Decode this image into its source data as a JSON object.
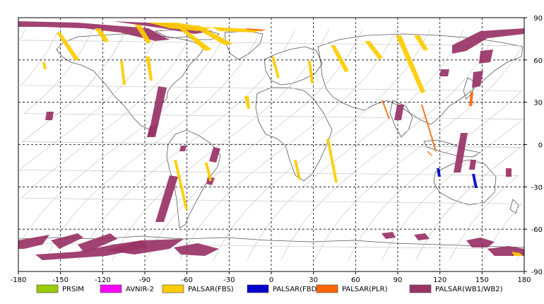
{
  "map": {
    "x_axis": {
      "range": [
        -180,
        180
      ],
      "ticks": [
        -180,
        -150,
        -120,
        -90,
        -60,
        -30,
        0,
        30,
        60,
        90,
        120,
        150,
        180
      ],
      "tick_labels": [
        "-180",
        "-150",
        "-120",
        "-90",
        "-60",
        "-30",
        "0",
        "30",
        "60",
        "90",
        "120",
        "150",
        "180"
      ]
    },
    "y_axis": {
      "range": [
        -90,
        90
      ],
      "ticks": [
        90,
        60,
        30,
        0,
        -30,
        -60,
        -90
      ],
      "tick_labels": [
        "90",
        "60",
        "30",
        "0",
        "-30",
        "-60",
        "-90"
      ]
    },
    "grid": "dashed",
    "legend": {
      "placement": "bottom",
      "items": [
        {
          "label": "PRSIM",
          "color": "#99cc00"
        },
        {
          "label": "AVNIR-2",
          "color": "#ff00ff"
        },
        {
          "label": "PALSAR(FBS)",
          "color": "#ffcc00"
        },
        {
          "label": "PALSAR(FBD)",
          "color": "#0000cc"
        },
        {
          "label": "PALSAR(PLR)",
          "color": "#ff6600"
        },
        {
          "label": "PALSAR(WB1/WB2)",
          "color": "#993366"
        }
      ]
    },
    "colors": {
      "coast": "#555555",
      "orbit": "#c8c8c8",
      "wb": "#993366",
      "fbs": "#ffcc00",
      "fbd": "#0000cc",
      "plr": "#ff6600"
    }
  }
}
